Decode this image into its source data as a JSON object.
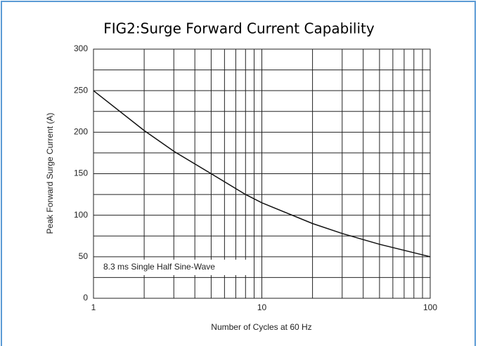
{
  "chart_data": {
    "type": "line",
    "title": "FIG2:Surge Forward Current Capability",
    "xlabel": "Number of Cycles at 60 Hz",
    "ylabel": "Peak Forward Surge Current (A)",
    "annotation": "8.3 ms Single Half Sine-Wave",
    "x": [
      1,
      2,
      3,
      5,
      8,
      10,
      20,
      30,
      50,
      100
    ],
    "series": [
      {
        "name": "Peak Forward Surge Current",
        "color": "#111111",
        "values": [
          250,
          202,
          177,
          150,
          125,
          115,
          90,
          78,
          65,
          50
        ]
      }
    ],
    "xlim": [
      1,
      100
    ],
    "xticks": [
      1,
      10,
      100
    ],
    "xscale": "log",
    "ylim": [
      0,
      300
    ],
    "yticks": [
      0,
      50,
      100,
      150,
      200,
      250,
      300
    ],
    "grid": true,
    "minor_grid": true
  }
}
